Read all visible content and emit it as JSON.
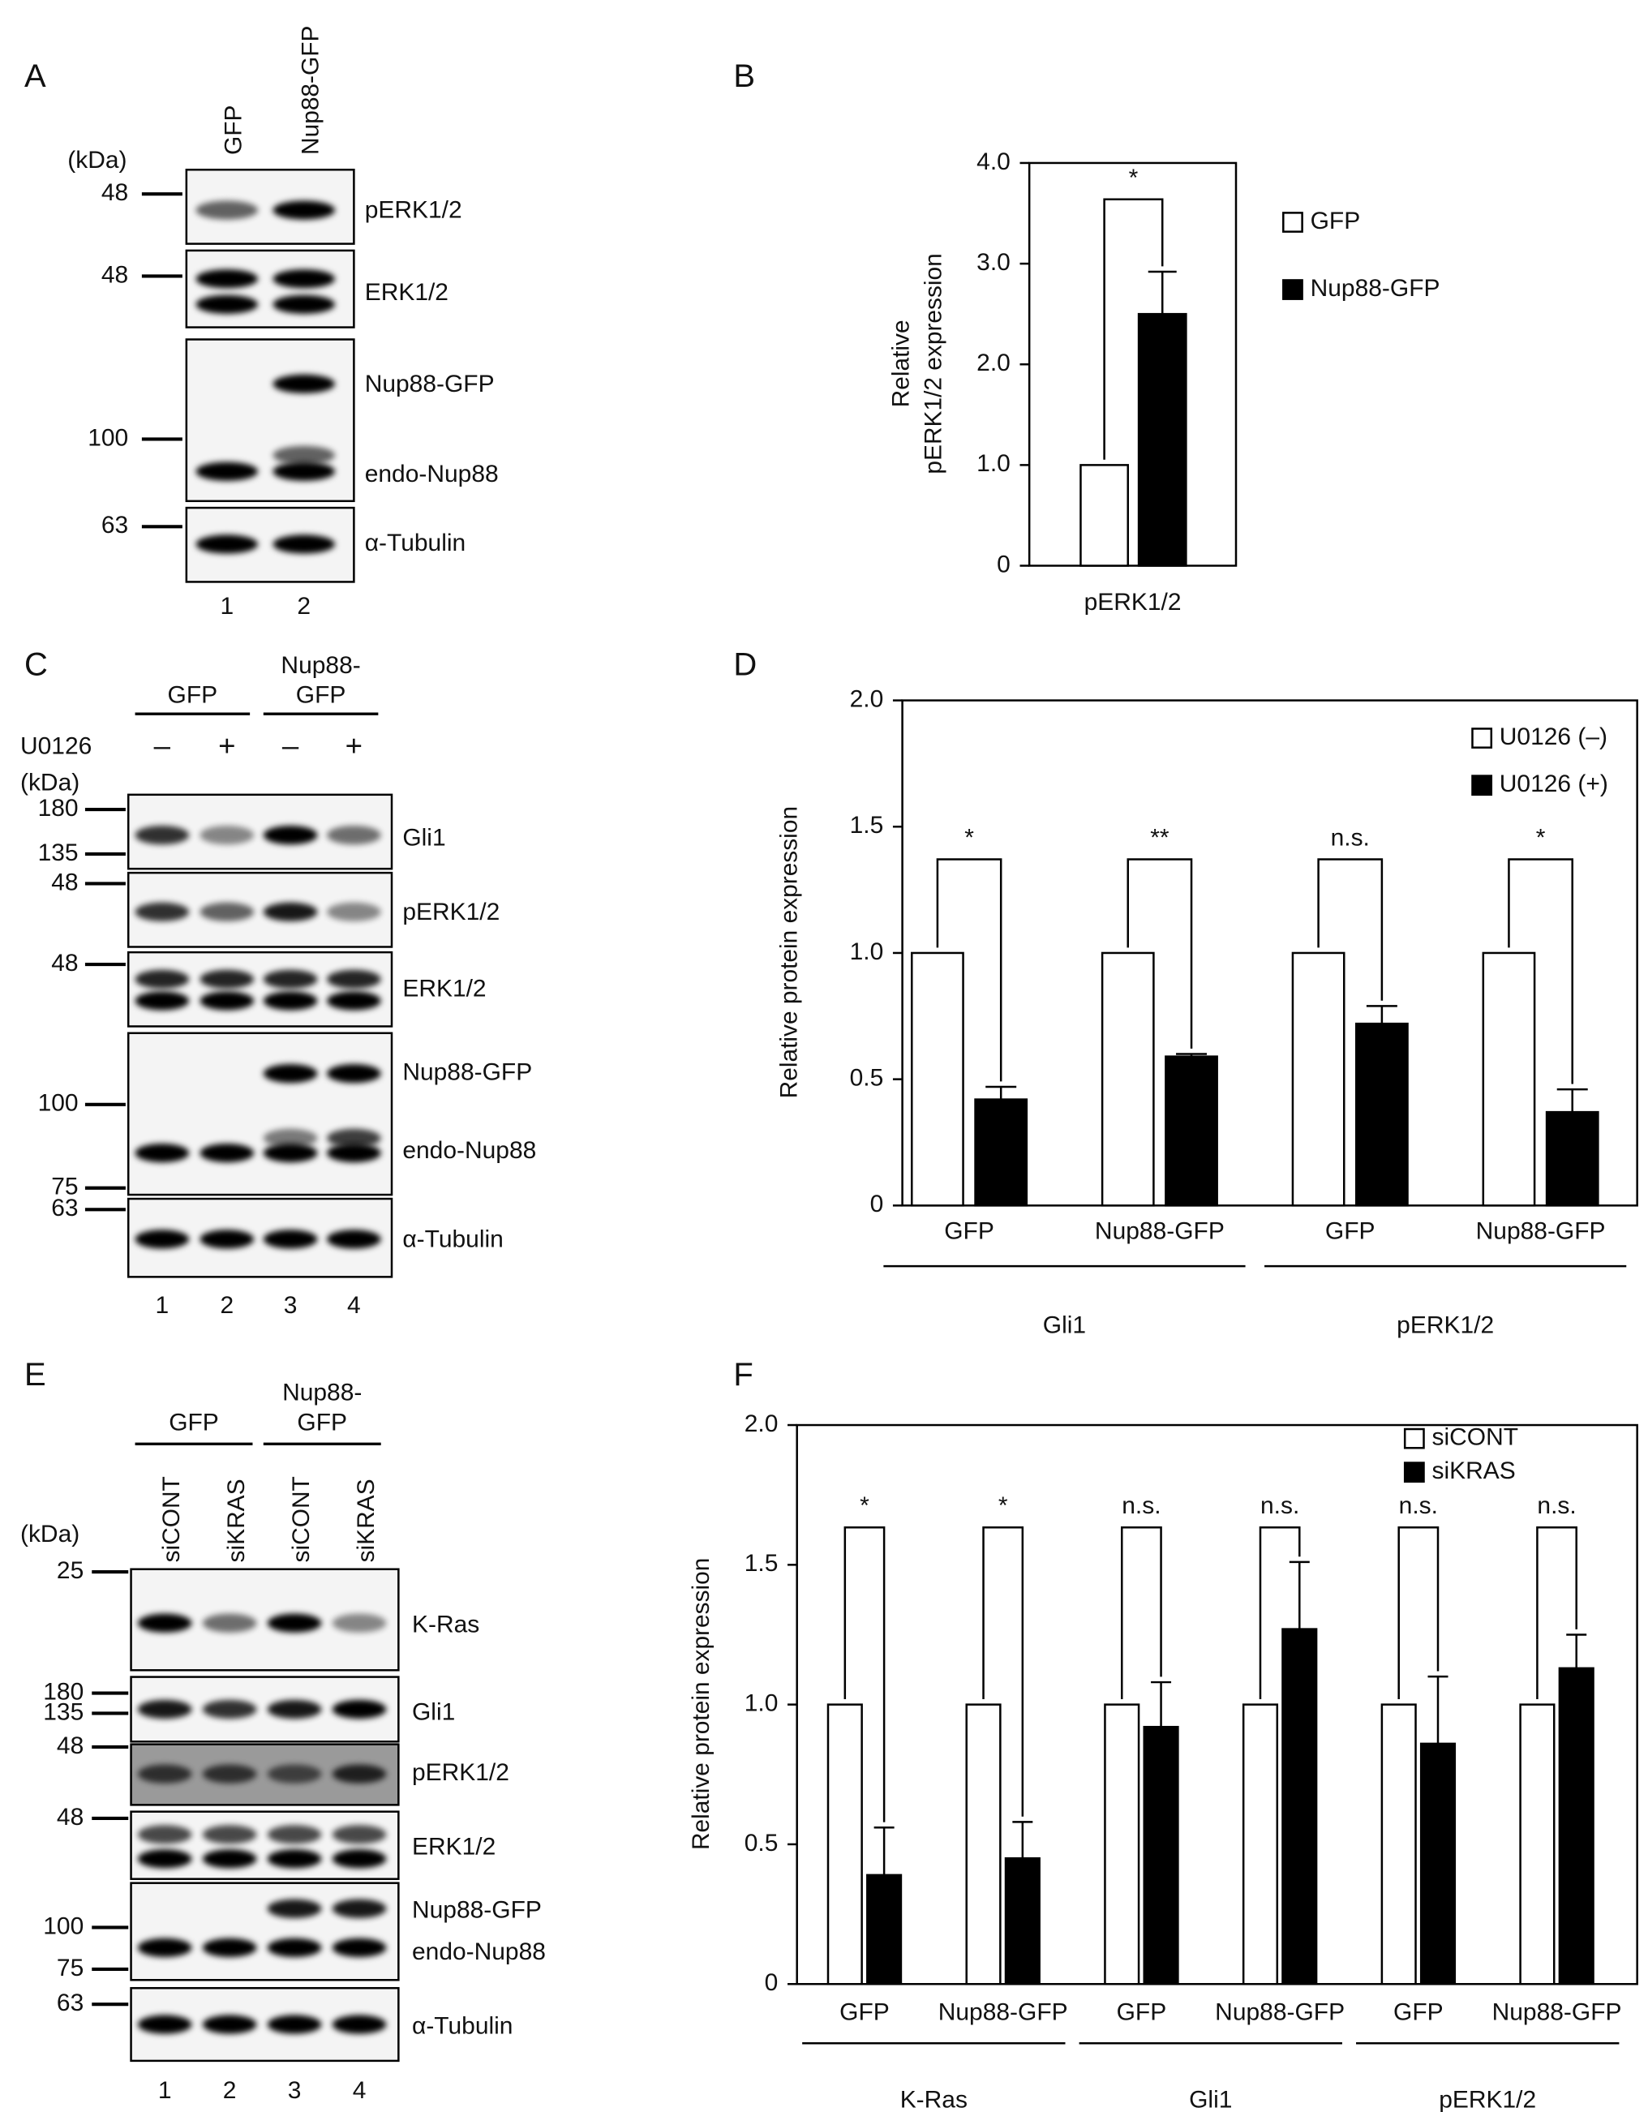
{
  "chart_data": [
    {
      "panel": "B",
      "type": "bar",
      "ylabel": [
        "Relative",
        "pERK1/2 expression"
      ],
      "categories": [
        "pERK1/2"
      ],
      "series": [
        {
          "name": "GFP",
          "color": "#ffffff",
          "values": [
            1.0
          ]
        },
        {
          "name": "Nup88-GFP",
          "color": "#000000",
          "values": [
            2.5
          ],
          "errors": [
            0.42
          ]
        }
      ],
      "ylim": [
        0,
        4
      ],
      "yticks": [
        0,
        {
          "value": 1,
          "label": "1.0"
        },
        {
          "value": 2,
          "label": "2.0"
        },
        {
          "value": 3,
          "label": "3.0"
        },
        {
          "value": 4,
          "label": "4.0"
        }
      ],
      "significance": [
        "*"
      ],
      "legend": "outside-right"
    },
    {
      "panel": "D",
      "type": "bar",
      "ylabel": [
        "Relative protein expression"
      ],
      "categories": [
        "GFP",
        "Nup88-GFP",
        "GFP",
        "Nup88-GFP"
      ],
      "groups": [
        "Gli1",
        "pERK1/2"
      ],
      "series": [
        {
          "name": "U0126 (–)",
          "color": "#ffffff",
          "values": [
            1.0,
            1.0,
            1.0,
            1.0
          ]
        },
        {
          "name": "U0126 (+)",
          "color": "#000000",
          "values": [
            0.42,
            0.59,
            0.72,
            0.37
          ],
          "errors": [
            0.05,
            0.01,
            0.07,
            0.09
          ]
        }
      ],
      "ylim": [
        0,
        2
      ],
      "yticks": [
        0,
        0.5,
        {
          "value": 1,
          "label": "1.0"
        },
        1.5,
        {
          "value": 2,
          "label": "2.0"
        }
      ],
      "significance": [
        "*",
        "**",
        "n.s.",
        "*"
      ],
      "legend": "top-right"
    },
    {
      "panel": "F",
      "type": "bar",
      "ylabel": [
        "Relative protein expression"
      ],
      "categories": [
        "GFP",
        "Nup88-GFP",
        "GFP",
        "Nup88-GFP",
        "GFP",
        "Nup88-GFP"
      ],
      "groups": [
        "K-Ras",
        "Gli1",
        "pERK1/2"
      ],
      "series": [
        {
          "name": "siCONT",
          "color": "#ffffff",
          "values": [
            1.0,
            1.0,
            1.0,
            1.0,
            1.0,
            1.0
          ]
        },
        {
          "name": "siKRAS",
          "color": "#000000",
          "values": [
            0.39,
            0.45,
            0.92,
            1.27,
            0.86,
            1.13
          ],
          "errors": [
            0.17,
            0.13,
            0.16,
            0.24,
            0.24,
            0.12
          ]
        }
      ],
      "ylim": [
        0,
        2
      ],
      "yticks": [
        0,
        0.5,
        {
          "value": 1,
          "label": "1.0"
        },
        1.5,
        {
          "value": 2,
          "label": "2.0"
        }
      ],
      "significance": [
        "*",
        "*",
        "n.s.",
        "n.s.",
        "n.s.",
        "n.s."
      ],
      "legend": "top-right"
    }
  ],
  "blots": [
    {
      "panel": "A",
      "lane_labels": [
        "GFP",
        "Nup88-GFP"
      ],
      "kda": "(kDa)",
      "strips": [
        {
          "labels": [
            "pERK1/2"
          ],
          "markers": [
            48
          ]
        },
        {
          "labels": [
            "ERK1/2"
          ],
          "markers": [
            48
          ]
        },
        {
          "labels": [
            "Nup88-GFP",
            "endo-Nup88"
          ],
          "markers": [
            100
          ]
        },
        {
          "labels": [
            "α-Tubulin"
          ],
          "markers": [
            63
          ]
        }
      ],
      "lane_numbers": [
        1,
        2
      ]
    },
    {
      "panel": "C",
      "groups": [
        [
          "GFP"
        ],
        [
          "Nup88-",
          "GFP"
        ]
      ],
      "treatment": "U0126",
      "treatment_signs": [
        "–",
        "+",
        "–",
        "+"
      ],
      "kda": "(kDa)",
      "strips": [
        {
          "labels": [
            "Gli1"
          ],
          "markers": [
            180,
            135
          ]
        },
        {
          "labels": [
            "pERK1/2"
          ],
          "markers": [
            48
          ]
        },
        {
          "labels": [
            "ERK1/2"
          ],
          "markers": [
            48
          ]
        },
        {
          "labels": [
            "Nup88-GFP",
            "endo-Nup88"
          ],
          "markers": [
            100,
            75
          ]
        },
        {
          "labels": [
            "α-Tubulin"
          ],
          "markers": [
            63
          ]
        }
      ],
      "lane_numbers": [
        1,
        2,
        3,
        4
      ]
    },
    {
      "panel": "E",
      "groups": [
        [
          "GFP"
        ],
        [
          "Nup88-",
          "GFP"
        ]
      ],
      "lane_labels": [
        "siCONT",
        "siKRAS",
        "siCONT",
        "siKRAS"
      ],
      "kda": "(kDa)",
      "strips": [
        {
          "labels": [
            "K-Ras"
          ],
          "markers": [
            25
          ]
        },
        {
          "labels": [
            "Gli1"
          ],
          "markers": [
            180,
            135
          ]
        },
        {
          "labels": [
            "pERK1/2"
          ],
          "markers": [
            48
          ]
        },
        {
          "labels": [
            "ERK1/2"
          ],
          "markers": [
            48
          ]
        },
        {
          "labels": [
            "Nup88-GFP",
            "endo-Nup88"
          ],
          "markers": [
            100,
            75
          ]
        },
        {
          "labels": [
            "α-Tubulin"
          ],
          "markers": [
            63
          ]
        }
      ],
      "lane_numbers": [
        1,
        2,
        3,
        4
      ]
    }
  ]
}
